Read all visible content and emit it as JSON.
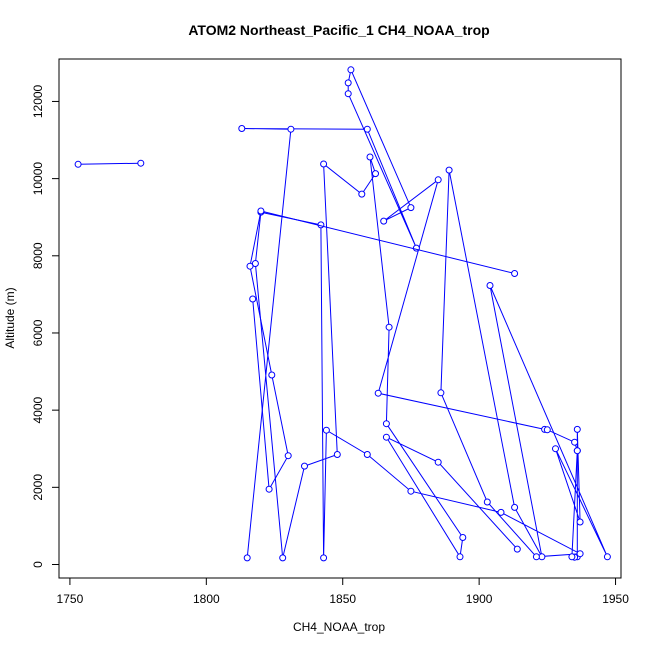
{
  "chart_data": {
    "type": "line",
    "title": "ATOM2 Northeast_Pacific_1 CH4_NOAA_trop",
    "xlabel": "CH4_NOAA_trop",
    "ylabel": "Altitude (m)",
    "xlim": [
      1746,
      1952
    ],
    "ylim": [
      -350,
      13100
    ],
    "xticks": [
      1750,
      1800,
      1850,
      1900,
      1950
    ],
    "yticks": [
      0,
      2000,
      4000,
      6000,
      8000,
      10000,
      12000
    ],
    "grid": false,
    "legend": "none",
    "series": [
      {
        "color": "#0000ff",
        "marker": "open-circle",
        "x": [
          1815,
          1831,
          1813,
          1859,
          1877,
          1852,
          1852,
          1853,
          1875,
          1865,
          1885,
          1863,
          1924,
          1925,
          1935,
          1936,
          1936,
          1935,
          1934,
          1936,
          1936,
          1937,
          1928,
          1947,
          1904,
          1923,
          1913,
          1889,
          1886,
          1903,
          1921,
          1937,
          1908,
          1875,
          1859,
          1844,
          1843,
          1842,
          1820,
          1818,
          1828,
          1836,
          1848,
          1843,
          1857,
          1862,
          1860,
          1867,
          1866,
          1894,
          1893,
          1866,
          1885,
          1914
        ],
        "y": [
          170,
          11280,
          11300,
          11280,
          8200,
          12200,
          12480,
          12820,
          9250,
          8900,
          9970,
          4440,
          3500,
          3490,
          3170,
          2950,
          200,
          190,
          200,
          2950,
          3500,
          1100,
          3000,
          200,
          7230,
          200,
          1480,
          10220,
          4450,
          1620,
          200,
          280,
          1350,
          1900,
          2850,
          3480,
          170,
          8800,
          9130,
          7800,
          170,
          2550,
          2850,
          10380,
          9600,
          10130,
          10560,
          6150,
          3650,
          700,
          200,
          3300,
          2650,
          400
        ]
      },
      {
        "color": "#0000ff",
        "marker": "open-circle",
        "x": [
          1753,
          1776
        ],
        "y": [
          10370,
          10400
        ]
      },
      {
        "color": "#0000ff",
        "marker": "open-circle",
        "x": [
          1913,
          1820,
          1816,
          1824,
          1830,
          1823,
          1817
        ],
        "y": [
          7540,
          9160,
          7730,
          4910,
          2820,
          1950,
          6880
        ]
      }
    ]
  }
}
